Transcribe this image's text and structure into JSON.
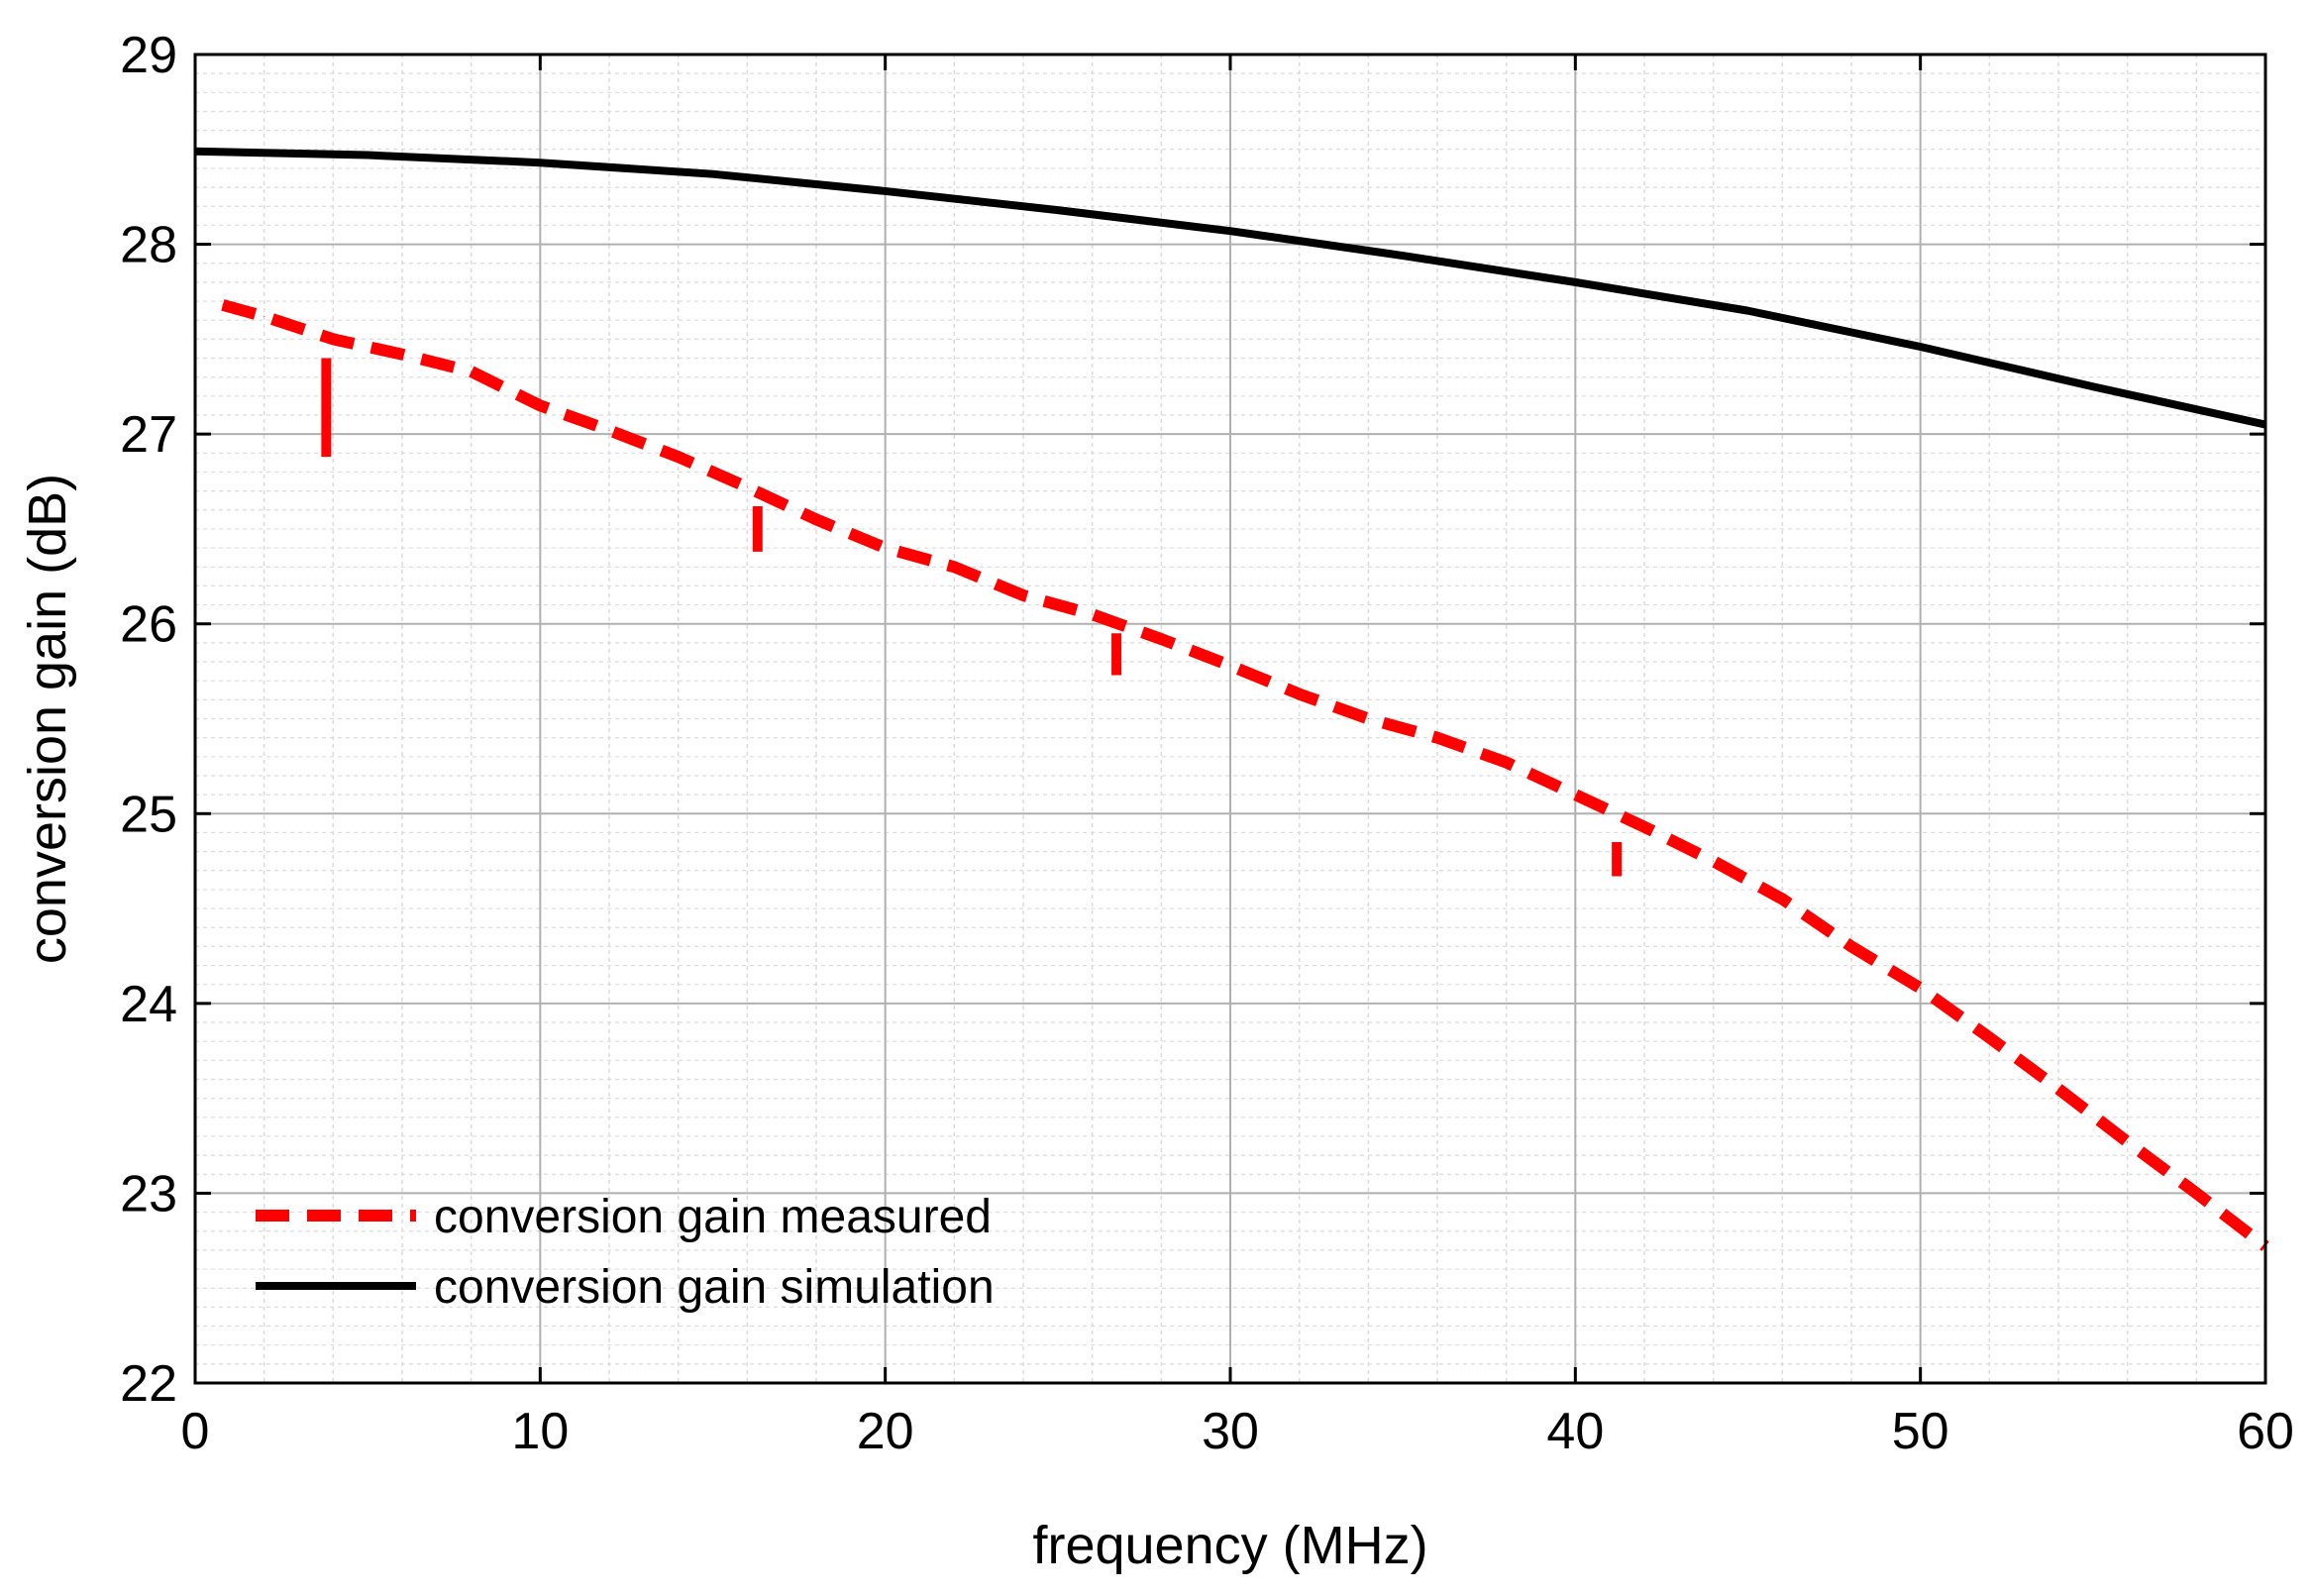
{
  "chart_data": {
    "type": "line",
    "title": "",
    "xlabel": "frequency (MHz)",
    "ylabel": "conversion gain (dB)",
    "xlim": [
      0,
      60
    ],
    "ylim": [
      22,
      29
    ],
    "xticks": [
      0,
      10,
      20,
      30,
      40,
      50,
      60
    ],
    "yticks": [
      22,
      23,
      24,
      25,
      26,
      27,
      28,
      29
    ],
    "x_minor_step": 2,
    "y_minor_step": 0.1,
    "grid": true,
    "legend_position": "bottom-left",
    "colors": {
      "measured": "#ff0000",
      "simulation": "#000000",
      "grid_major": "#b0b0b0",
      "grid_minor": "#dcdcdc"
    },
    "series": [
      {
        "name": "conversion gain measured",
        "style": "dashed",
        "x": [
          0.8,
          2,
          4,
          6,
          8,
          10,
          12,
          14,
          16,
          18,
          20,
          22,
          24,
          26,
          28,
          30,
          32,
          34,
          36,
          38,
          40,
          42,
          44,
          46,
          48,
          50,
          52,
          54,
          56,
          58,
          60
        ],
        "y": [
          27.68,
          27.62,
          27.5,
          27.42,
          27.33,
          27.15,
          27.02,
          26.88,
          26.72,
          26.55,
          26.4,
          26.3,
          26.15,
          26.05,
          25.92,
          25.78,
          25.63,
          25.5,
          25.4,
          25.27,
          25.1,
          24.93,
          24.75,
          24.55,
          24.3,
          24.08,
          23.82,
          23.55,
          23.27,
          23.0,
          22.72
        ]
      },
      {
        "name": "conversion gain simulation",
        "style": "solid",
        "x": [
          0,
          5,
          10,
          15,
          20,
          25,
          30,
          35,
          40,
          45,
          50,
          55,
          60
        ],
        "y": [
          28.49,
          28.47,
          28.43,
          28.37,
          28.28,
          28.18,
          28.07,
          27.94,
          27.8,
          27.65,
          27.46,
          27.25,
          27.05
        ]
      }
    ],
    "glitches": [
      {
        "x": 3.8,
        "y_top": 27.4,
        "y_bottom": 26.88
      },
      {
        "x": 16.3,
        "y_top": 26.62,
        "y_bottom": 26.38
      },
      {
        "x": 26.7,
        "y_top": 25.95,
        "y_bottom": 25.73
      },
      {
        "x": 41.2,
        "y_top": 24.85,
        "y_bottom": 24.67
      }
    ]
  }
}
